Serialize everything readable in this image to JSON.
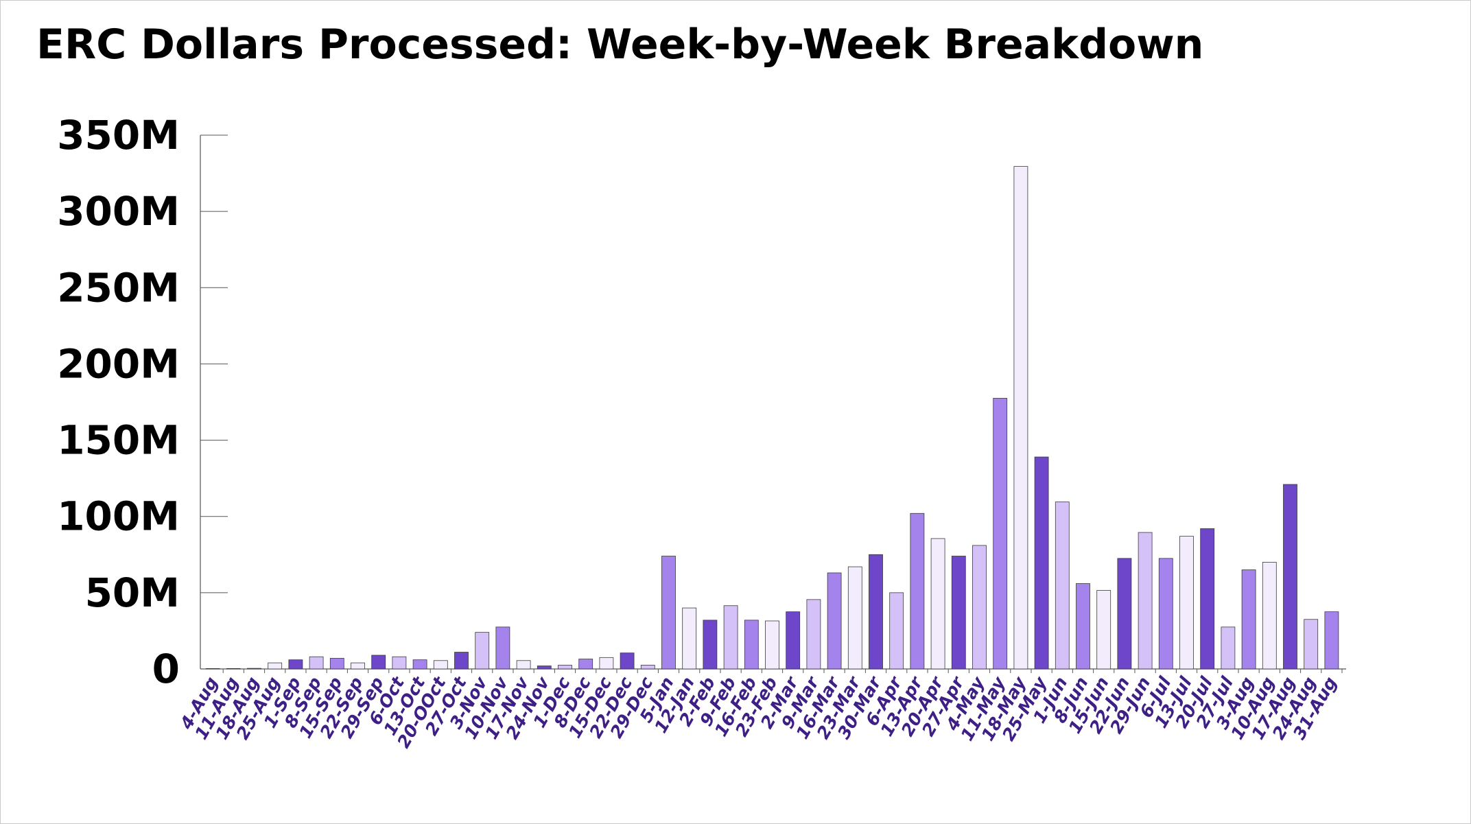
{
  "chart_data": {
    "type": "bar",
    "title": "ERC Dollars Processed: Week-by-Week Breakdown",
    "xlabel": "",
    "ylabel": "",
    "ylim": [
      0,
      350000000
    ],
    "yticks": [
      {
        "value": 0,
        "label": "0"
      },
      {
        "value": 50000000,
        "label": "50M"
      },
      {
        "value": 100000000,
        "label": "100M"
      },
      {
        "value": 150000000,
        "label": "150M"
      },
      {
        "value": 200000000,
        "label": "200M"
      },
      {
        "value": 250000000,
        "label": "250M"
      },
      {
        "value": 300000000,
        "label": "300M"
      },
      {
        "value": 350000000,
        "label": "350M"
      }
    ],
    "grid": false,
    "legend": "none",
    "categories": [
      "4-Aug",
      "11-Aug",
      "18-Aug",
      "25-Aug",
      "1-Sep",
      "8-Sep",
      "15-Sep",
      "22-Sep",
      "29-Sep",
      "6-Oct",
      "13-Oct",
      "20-OOct",
      "27-Oct",
      "3-Nov",
      "10-Nov",
      "17-Nov",
      "24-Nov",
      "1-Dec",
      "8-Dec",
      "15-Dec",
      "22-Dec",
      "29-Dec",
      "5-Jan",
      "12-Jan",
      "2-Feb",
      "9-Feb",
      "16-Feb",
      "23-Feb",
      "2-Mar",
      "9-Mar",
      "16-Mar",
      "23-Mar",
      "30-Mar",
      "6-Apr",
      "13-Apr",
      "20-Apr",
      "27-Apr",
      "4-May",
      "11-May",
      "18-May",
      "25-May",
      "1-Jun",
      "8-Jun",
      "15-Jun",
      "22-Jun",
      "29-Jun",
      "6-Jul",
      "13-Jul",
      "20-Jul",
      "27-Jul",
      "3-Aug",
      "10-Aug",
      "17-Aug",
      "24-Aug",
      "31-Aug"
    ],
    "values": [
      0,
      300000,
      400000,
      4000000,
      6000000,
      8000000,
      7000000,
      4000000,
      9000000,
      8000000,
      6000000,
      5500000,
      11000000,
      24000000,
      27500000,
      5500000,
      2000000,
      2500000,
      6500000,
      7500000,
      10500000,
      2500000,
      74000000,
      40000000,
      32000000,
      41500000,
      32000000,
      31500000,
      37500000,
      45500000,
      63000000,
      67000000,
      75000000,
      50000000,
      102000000,
      85500000,
      74000000,
      81000000,
      177500000,
      329500000,
      139000000,
      109500000,
      56000000,
      51500000,
      72500000,
      89500000,
      72500000,
      87000000,
      92000000,
      27500000,
      65000000,
      70000000,
      121000000,
      32500000,
      37500000
    ],
    "colors": [
      "#6d46c9",
      "#d4c1f7",
      "#a583ec",
      "#f2ecfc"
    ],
    "label_color": "#3d1f86"
  }
}
